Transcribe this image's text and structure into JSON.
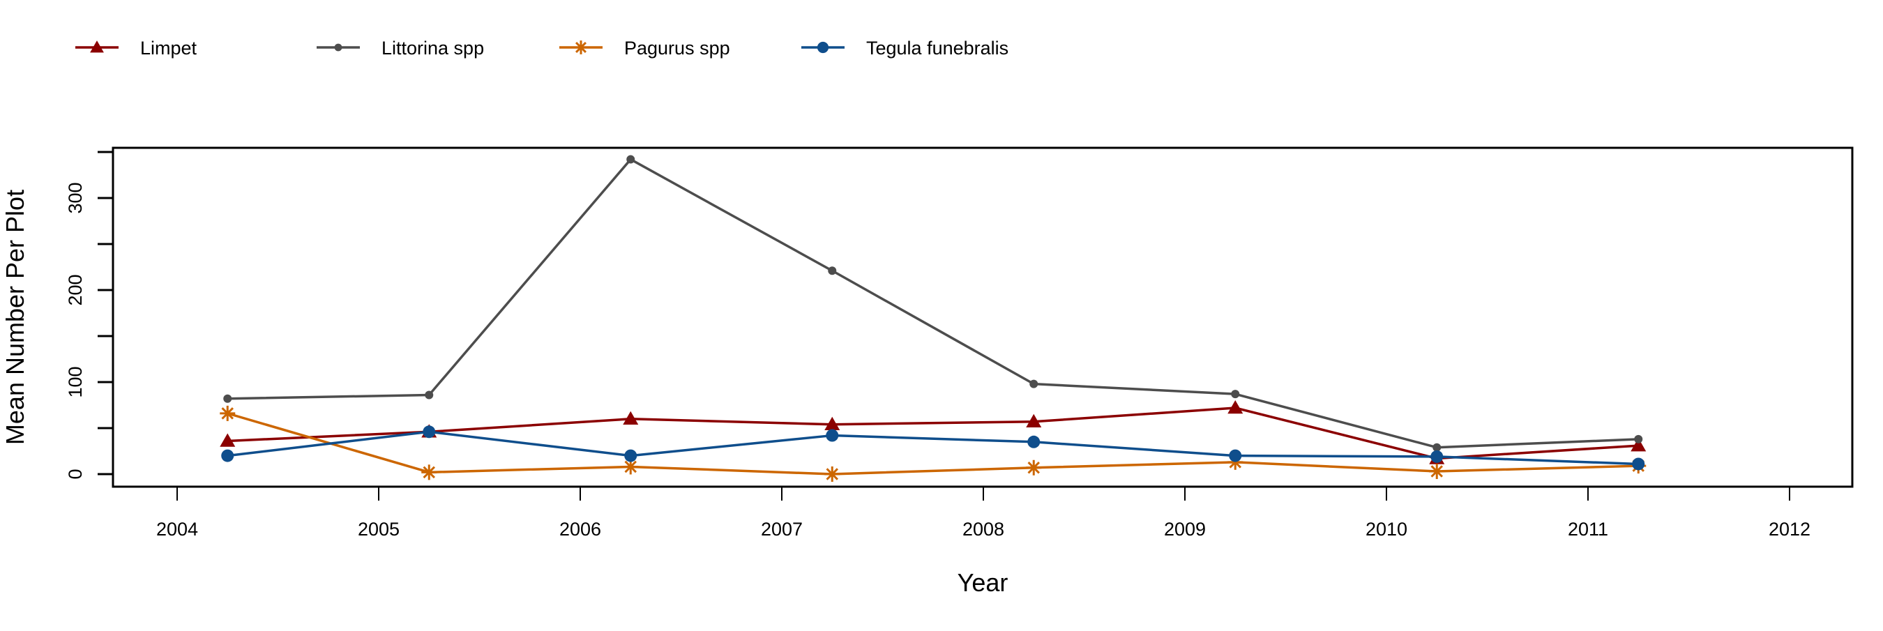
{
  "chart_data": {
    "type": "line",
    "title": "",
    "xlabel": "Year",
    "ylabel": "Mean Number Per Plot",
    "x_ticks": [
      2004,
      2005,
      2006,
      2007,
      2008,
      2009,
      2010,
      2011,
      2012
    ],
    "y_ticks": [
      0,
      100,
      200,
      300
    ],
    "y_minor_ticks": [
      0,
      50,
      100,
      150,
      200,
      250,
      300,
      350
    ],
    "xlim": [
      2003.7,
      2012.3
    ],
    "ylim": [
      -14,
      355
    ],
    "grid": false,
    "legend_position": "top-left, horizontal, outside plot",
    "x": [
      2004.25,
      2005.25,
      2006.25,
      2007.25,
      2008.25,
      2009.25,
      2010.25,
      2011.25
    ],
    "series": [
      {
        "name": "Limpet",
        "color": "#8B0000",
        "marker": "triangle",
        "values": [
          36,
          46,
          60,
          54,
          57,
          72,
          17,
          31
        ]
      },
      {
        "name": "Littorina spp",
        "color": "#4D4D4D",
        "marker": "small-circle",
        "values": [
          82,
          86,
          342,
          221,
          98,
          87,
          29,
          38
        ]
      },
      {
        "name": "Pagurus spp",
        "color": "#CC6600",
        "marker": "asterisk",
        "values": [
          66,
          2,
          8,
          0,
          7,
          13,
          3,
          9
        ]
      },
      {
        "name": "Tegula funebralis",
        "color": "#0F4E8C",
        "marker": "circle",
        "values": [
          20,
          46,
          20,
          42,
          35,
          20,
          19,
          11
        ]
      }
    ]
  }
}
